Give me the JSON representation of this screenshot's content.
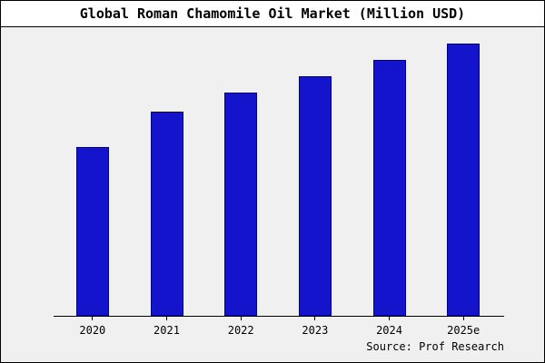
{
  "title": "Global Roman Chamomile Oil Market (Million USD)",
  "source": "Source: Prof Research",
  "colors": {
    "bar_fill": "#1414cc",
    "bar_border": "#00008b",
    "plot_bg": "#f0f0f0"
  },
  "chart_data": {
    "type": "bar",
    "title": "Global Roman Chamomile Oil Market (Million USD)",
    "categories": [
      "2020",
      "2021",
      "2022",
      "2023",
      "2024",
      "2025e"
    ],
    "values": [
      62,
      75,
      82,
      88,
      94,
      100
    ],
    "xlabel": "",
    "ylabel": "",
    "ylim": [
      0,
      105
    ],
    "grid": false,
    "legend": false,
    "y_axis_labels_visible": false,
    "annotation": "Source: Prof Research"
  }
}
